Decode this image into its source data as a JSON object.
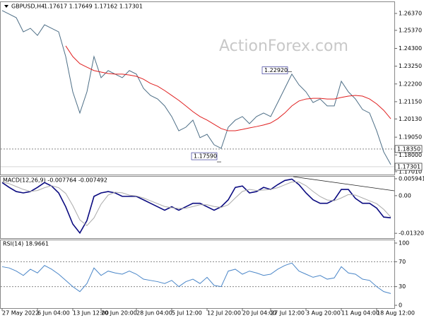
{
  "chart_data": [
    {
      "type": "line",
      "title": "GBPUSD,H4",
      "subtitle": "1.17617 1.17649 1.17162 1.17301",
      "watermark": "ActionForex.com",
      "categories": [
        "27 May 2022",
        null,
        null,
        null,
        null,
        "6 Jun 04:00",
        null,
        null,
        null,
        null,
        "13 Jun 12:00",
        null,
        null,
        null,
        "20 Jun 20:00",
        null,
        null,
        null,
        null,
        "28 Jun 04:00",
        null,
        null,
        null,
        null,
        "5 Jul 12:00",
        null,
        null,
        null,
        null,
        "12 Jul 20:00",
        null,
        null,
        null,
        null,
        "20 Jul 04:00",
        null,
        null,
        null,
        "27 Jul 12:00",
        null,
        null,
        null,
        null,
        "3 Aug 20:00",
        null,
        null,
        null,
        null,
        "11 Aug 04:00",
        null,
        null,
        null,
        null,
        "18 Aug 12:00",
        null,
        null
      ],
      "ylim": [
        1.1684,
        1.2704
      ],
      "yticks": [
        {
          "value": 1.2637,
          "label": "1.26370"
        },
        {
          "value": 1.2537,
          "label": "1.25370"
        },
        {
          "value": 1.243,
          "label": "1.24300"
        },
        {
          "value": 1.2325,
          "label": "1.23250"
        },
        {
          "value": 1.222,
          "label": "1.22200"
        },
        {
          "value": 1.2115,
          "label": "1.21150"
        },
        {
          "value": 1.2013,
          "label": "1.20130"
        },
        {
          "value": 1.1905,
          "label": "1.19050"
        },
        {
          "value": 1.18,
          "label": "1.18000"
        },
        {
          "value": 1.1701,
          "label": "1.17010"
        }
      ],
      "series": [
        {
          "color": "#4d6e86",
          "values": [
            1.2654,
            1.2633,
            1.2612,
            1.2528,
            1.2549,
            1.2507,
            1.257,
            1.2549,
            1.2528,
            1.2382,
            1.2173,
            1.2048,
            1.2173,
            1.2382,
            1.2257,
            1.2299,
            1.2278,
            1.2257,
            1.2299,
            1.2278,
            1.2194,
            1.2152,
            1.2131,
            1.209,
            1.2027,
            1.1943,
            1.1964,
            1.2006,
            1.1902,
            1.1922,
            1.186,
            1.1839,
            1.1964,
            1.2006,
            1.2027,
            1.1985,
            1.2027,
            1.2048,
            1.2027,
            1.211,
            1.2194,
            1.2278,
            1.2215,
            1.2173,
            1.211,
            1.2131,
            1.209,
            1.209,
            1.2236,
            1.2173,
            1.2131,
            1.2069,
            1.2048,
            1.1943,
            1.1818,
            1.1743
          ]
        },
        {
          "color": "#e02020",
          "values": [
            null,
            null,
            null,
            null,
            null,
            null,
            null,
            null,
            null,
            1.2445,
            1.2382,
            1.234,
            1.2319,
            1.2299,
            1.229,
            1.2282,
            1.2278,
            1.2278,
            1.2273,
            1.2265,
            1.2248,
            1.2223,
            1.2207,
            1.2181,
            1.2152,
            1.2123,
            1.209,
            1.2056,
            1.2027,
            1.2006,
            1.1981,
            1.1956,
            1.1943,
            1.1943,
            1.1951,
            1.196,
            1.1968,
            1.1977,
            1.1989,
            1.2014,
            1.2048,
            1.209,
            1.2119,
            1.2131,
            1.2135,
            1.2135,
            1.2131,
            1.2131,
            1.214,
            1.2148,
            1.2152,
            1.2148,
            1.2131,
            1.2102,
            1.2064,
            1.2014
          ]
        }
      ],
      "callouts": [
        {
          "x": 41,
          "value": 1.2292,
          "label": "1.22920"
        },
        {
          "x": 31,
          "value": 1.1759,
          "label": "1.17590"
        }
      ],
      "levels": [
        {
          "value": 1.1835,
          "label": "1.18350"
        }
      ],
      "last": {
        "value": 1.17301,
        "label": "1.17301"
      }
    },
    {
      "type": "line",
      "title": "MACD(12,26,9) -0.007764 -0.007492",
      "ylim": [
        -0.0149,
        0.00667
      ],
      "yticks": [
        0.005941,
        {
          "value": 0,
          "label": "0.00"
        },
        -0.013207
      ],
      "series": [
        {
          "color": "#0a0a80",
          "values": [
            0.00461,
            0.00291,
            0.00145,
            0.00097,
            0.00145,
            0.00291,
            0.00461,
            0.00339,
            0.00097,
            -0.00388,
            -0.00994,
            -0.01309,
            -0.00873,
            -0.00024,
            0.00097,
            0.00145,
            0.00097,
            -0.00024,
            -0.00024,
            -0.00024,
            -0.00145,
            -0.00267,
            -0.00388,
            -0.00509,
            -0.00388,
            -0.00509,
            -0.00388,
            -0.00267,
            -0.00267,
            -0.00388,
            -0.00509,
            -0.00388,
            -0.00145,
            0.00291,
            0.00339,
            0.00097,
            0.00145,
            0.00291,
            0.00218,
            0.00388,
            0.00533,
            0.00582,
            0.00388,
            0.00097,
            -0.00145,
            -0.00267,
            -0.00267,
            -0.00145,
            0.00218,
            0.00218,
            -0.00097,
            -0.00267,
            -0.00267,
            -0.00436,
            -0.00751,
            -0.00776
          ]
        },
        {
          "color": "#aaaaaa",
          "values": [
            0.0048,
            0.0042,
            0.0032,
            0.0022,
            0.0015,
            0.0018,
            0.0028,
            0.0035,
            0.0028,
            0.0008,
            -0.0035,
            -0.0085,
            -0.0105,
            -0.0078,
            -0.003,
            0.0002,
            0.0012,
            0.001,
            0.0002,
            -0.0001,
            -0.0008,
            -0.0018,
            -0.0028,
            -0.0038,
            -0.0042,
            -0.0045,
            -0.0044,
            -0.0038,
            -0.0032,
            -0.0032,
            -0.0038,
            -0.0041,
            -0.0032,
            -0.0008,
            0.0015,
            0.0022,
            0.0018,
            0.002,
            0.0022,
            0.0028,
            0.0038,
            0.0048,
            0.0048,
            0.0035,
            0.0015,
            -0.0003,
            -0.0015,
            -0.0018,
            -0.0008,
            0.0004,
            0.0002,
            -0.0008,
            -0.0018,
            -0.0028,
            -0.0048,
            -0.00749
          ]
        }
      ]
    },
    {
      "type": "line",
      "title": "RSI(14) 18.9661",
      "ylim": [
        -4.5,
        104.5
      ],
      "yticks": [
        100,
        70,
        30,
        0
      ],
      "levels": [
        70,
        30
      ],
      "series": [
        {
          "color": "#4a86c8",
          "values": [
            62,
            60,
            55,
            48,
            58,
            52,
            64,
            58,
            50,
            40,
            30,
            22,
            35,
            60,
            48,
            55,
            52,
            50,
            55,
            50,
            42,
            40,
            38,
            35,
            40,
            30,
            38,
            42,
            35,
            45,
            32,
            30,
            55,
            58,
            50,
            55,
            52,
            48,
            50,
            58,
            64,
            68,
            55,
            50,
            45,
            48,
            42,
            44,
            62,
            52,
            50,
            42,
            40,
            30,
            22,
            18.9661
          ]
        }
      ]
    }
  ]
}
